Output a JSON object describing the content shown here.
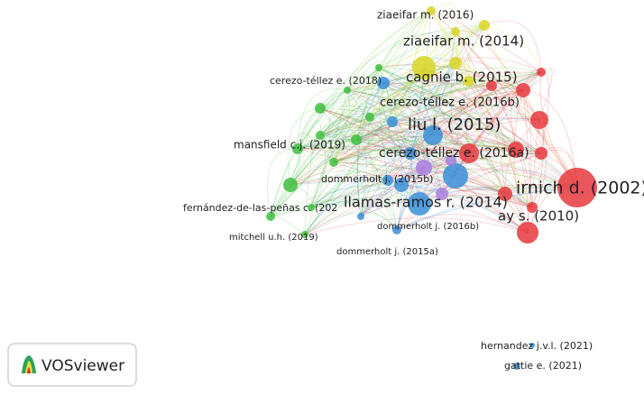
{
  "nodes": [
    {
      "label": "ziaeifar m. (2016)"
    },
    {
      "label": "ziaeifar m. (2014)"
    },
    {
      "label": "cagnie b. (2015)"
    },
    {
      "label": "cerezo-téllez e. (2018)"
    },
    {
      "label": "cerezo-téllez e. (2016b)"
    },
    {
      "label": "liu l. (2015)"
    },
    {
      "label": "mansfield c.j. (2019)"
    },
    {
      "label": "cerezo-téllez e. (2016a)"
    },
    {
      "label": "dommerholt j. (2015b)"
    },
    {
      "label": "irnich d. (2002)"
    },
    {
      "label": "llamas-ramos r. (2014)"
    },
    {
      "label": "fernández-de-las-peñas c. (202"
    },
    {
      "label": "ay s. (2010)"
    },
    {
      "label": "dommerholt j. (2016b)"
    },
    {
      "label": "mitchell u.h. (2019)"
    },
    {
      "label": "dommerholt j. (2015a)"
    },
    {
      "label": "hernandez j.v.l. (2021)"
    },
    {
      "label": "gattie e. (2021)"
    }
  ],
  "logo": {
    "label": "VOSviewer"
  }
}
